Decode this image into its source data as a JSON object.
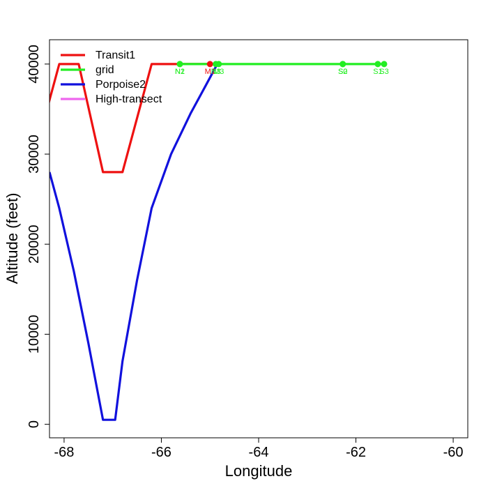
{
  "chart_data": {
    "type": "line",
    "title": "",
    "xlabel": "Longitude",
    "ylabel": "Altitude (feet)",
    "xlim": [
      -68.3,
      -59.7
    ],
    "ylim": [
      -1500,
      42700
    ],
    "x_ticks": [
      -68,
      -66,
      -64,
      -62,
      -60
    ],
    "x_tick_labels": [
      "-68",
      "-66",
      "-64",
      "-62",
      "-60"
    ],
    "y_ticks": [
      0,
      10000,
      20000,
      30000,
      40000
    ],
    "y_tick_labels": [
      "0",
      "10000",
      "20000",
      "30000",
      "40000"
    ],
    "grid": false,
    "legend_position": "top-left",
    "series": [
      {
        "name": "Transit1",
        "color": "#ee1111",
        "points": [
          [
            -68.4,
            34000
          ],
          [
            -68.1,
            40000
          ],
          [
            -67.7,
            40000
          ],
          [
            -67.2,
            28000
          ],
          [
            -66.8,
            28000
          ],
          [
            -66.2,
            40000
          ],
          [
            -64.9,
            40000
          ]
        ]
      },
      {
        "name": "grid",
        "color": "#22ee22",
        "points": [
          [
            -65.65,
            40000
          ],
          [
            -61.4,
            40000
          ]
        ]
      },
      {
        "name": "Porpoise2",
        "color": "#1111dd",
        "points": [
          [
            -68.3,
            28000
          ],
          [
            -68.1,
            24000
          ],
          [
            -67.8,
            17000
          ],
          [
            -67.5,
            9000
          ],
          [
            -67.2,
            500
          ],
          [
            -66.95,
            500
          ],
          [
            -66.8,
            7000
          ],
          [
            -66.5,
            16000
          ],
          [
            -66.2,
            24000
          ],
          [
            -65.8,
            30000
          ],
          [
            -65.4,
            34500
          ],
          [
            -65.1,
            37500
          ],
          [
            -64.85,
            40000
          ]
        ]
      },
      {
        "name": "High-transect",
        "color": "#ee66ee",
        "points": []
      }
    ],
    "waypoints": [
      {
        "label": "N2",
        "x": -65.62,
        "y": 40000,
        "color": "#22ee22"
      },
      {
        "label": "N1",
        "x": -65.62,
        "y": 40000,
        "color": "#22ee22"
      },
      {
        "label": "M1",
        "x": -65.0,
        "y": 40000,
        "color": "#ee1111"
      },
      {
        "label": "N3",
        "x": -64.88,
        "y": 40000,
        "color": "#22ee22"
      },
      {
        "label": "M3",
        "x": -64.82,
        "y": 40000,
        "color": "#22ee22"
      },
      {
        "label": "S2",
        "x": -62.27,
        "y": 40000,
        "color": "#22ee22"
      },
      {
        "label": "S0",
        "x": -62.27,
        "y": 40000,
        "color": "#22ee22"
      },
      {
        "label": "S1",
        "x": -61.55,
        "y": 40000,
        "color": "#22ee22"
      },
      {
        "label": "S3",
        "x": -61.42,
        "y": 40000,
        "color": "#22ee22"
      }
    ]
  }
}
